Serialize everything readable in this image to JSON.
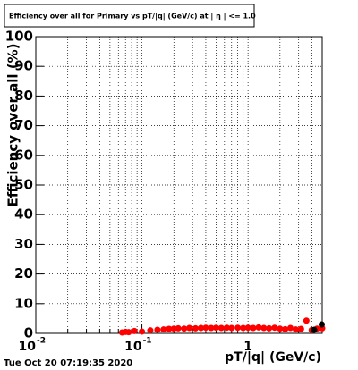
{
  "chart_data": {
    "type": "scatter",
    "title": "Efficiency over all for Primary vs pT/|q| (GeV/c) at | η | <= 1.0",
    "xlabel": "pT/|q| (GeV/c)",
    "ylabel": "Efficiency over all (%)",
    "timestamp": "Tue Oct 20 07:19:35 2020",
    "xlog": true,
    "grid": true,
    "xlim": [
      0.01,
      5
    ],
    "ylim": [
      0,
      100
    ],
    "xticks": [
      {
        "value": 0.01,
        "label": "10",
        "sup": "-2"
      },
      {
        "value": 0.1,
        "label": "10",
        "sup": "-1"
      },
      1
    ],
    "xgrid": [
      0.02,
      0.03,
      0.04,
      0.05,
      0.06,
      0.07,
      0.08,
      0.09,
      0.2,
      0.3,
      0.4,
      0.5,
      0.6,
      0.7,
      0.8,
      0.9,
      2,
      3,
      4
    ],
    "yticks": [
      0,
      10,
      20,
      30,
      40,
      50,
      60,
      70,
      80,
      90,
      100
    ],
    "series": [
      {
        "color": "#ff0000",
        "x": [
          0.065,
          0.07,
          0.075,
          0.085,
          0.1,
          0.12,
          0.14,
          0.16,
          0.18,
          0.2,
          0.22,
          0.25,
          0.28,
          0.32,
          0.36,
          0.4,
          0.45,
          0.5,
          0.56,
          0.63,
          0.7,
          0.8,
          0.9,
          1.0,
          1.12,
          1.26,
          1.41,
          1.58,
          1.78,
          2.0,
          2.24,
          2.51,
          2.82,
          3.16,
          3.55,
          3.98,
          4.47,
          5.0
        ],
        "values": [
          0.3,
          0.5,
          0.4,
          0.8,
          0.6,
          1.0,
          1.2,
          1.3,
          1.5,
          1.6,
          1.7,
          1.6,
          1.8,
          1.7,
          1.8,
          1.9,
          1.8,
          1.9,
          1.8,
          1.9,
          1.8,
          1.9,
          1.8,
          1.9,
          1.8,
          2.0,
          1.8,
          1.7,
          1.9,
          1.6,
          1.4,
          1.8,
          1.3,
          1.5,
          4.3,
          1.1,
          1.6,
          1.7
        ]
      },
      {
        "color": "#000000",
        "x": [
          4.2,
          4.95
        ],
        "values": [
          1.2,
          3.0
        ]
      }
    ]
  }
}
